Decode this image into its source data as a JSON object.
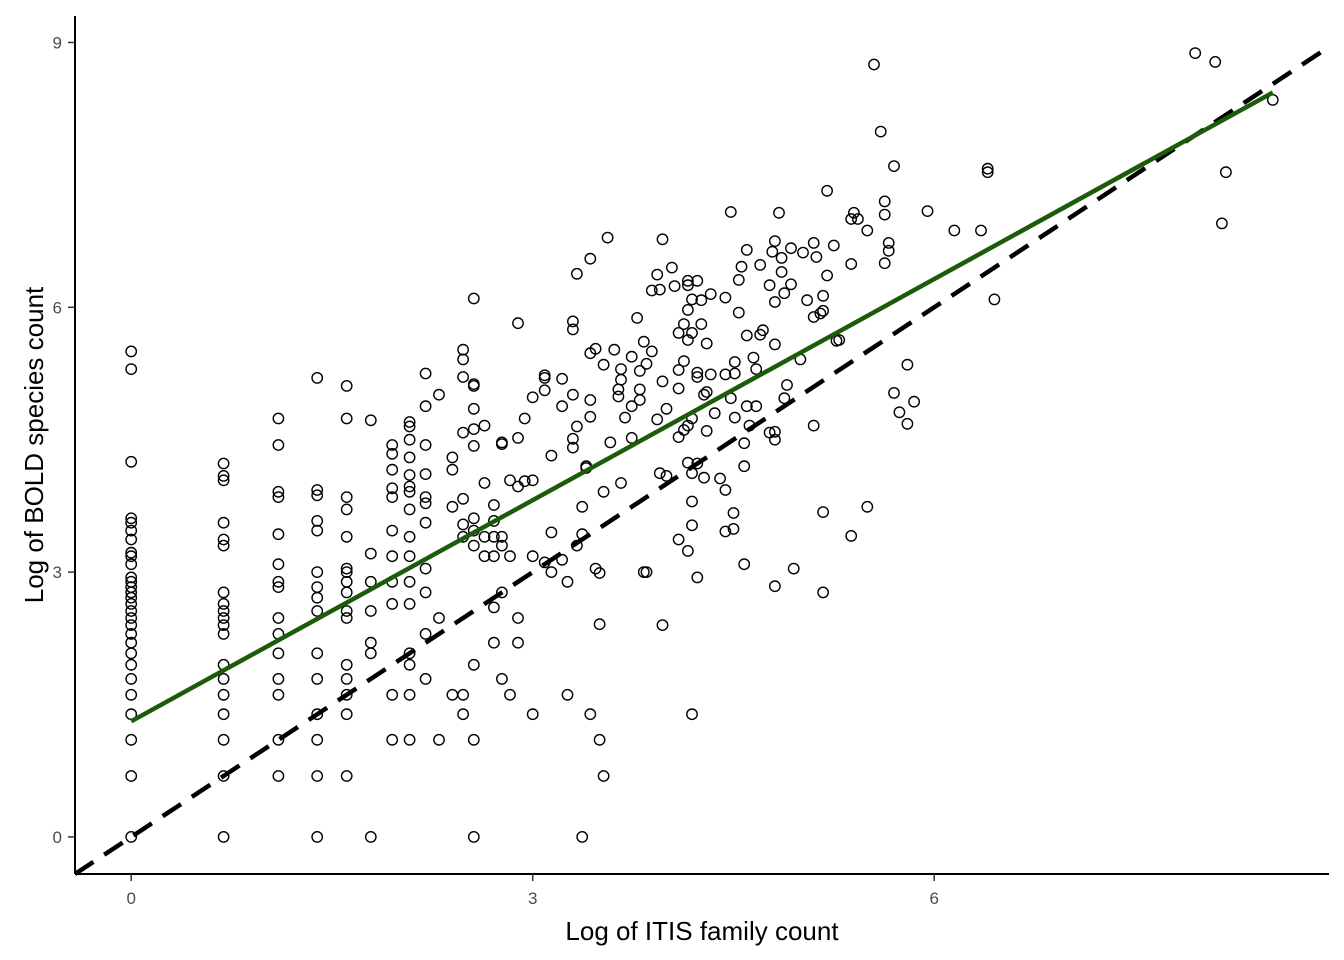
{
  "chart_data": {
    "type": "scatter",
    "xlabel": "Log of ITIS family count",
    "ylabel": "Log of BOLD species count",
    "xlim": [
      -0.42,
      8.95
    ],
    "ylim": [
      -0.42,
      9.3
    ],
    "xticks": [
      0,
      3,
      6
    ],
    "yticks": [
      0,
      3,
      6,
      9
    ],
    "grid": false,
    "colors": {
      "points": "#000000",
      "fit_line": "#1a5c0a",
      "identity_line": "#000000",
      "axis": "#000000"
    },
    "fit_line": {
      "name": "",
      "slope": 0.835,
      "intercept": 1.31,
      "x_range": [
        0,
        8.53
      ]
    },
    "identity_line": {
      "name": "",
      "slope": 1,
      "intercept": 0
    },
    "points": [
      [
        0,
        5.5
      ],
      [
        0,
        5.3
      ],
      [
        0,
        4.25
      ],
      [
        0,
        3.61
      ],
      [
        0,
        3.56
      ],
      [
        0,
        3.47
      ],
      [
        0,
        3.37
      ],
      [
        0,
        3.22
      ],
      [
        0,
        3.18
      ],
      [
        0,
        3.09
      ],
      [
        0,
        2.94
      ],
      [
        0,
        2.89
      ],
      [
        0,
        2.83
      ],
      [
        0,
        2.77
      ],
      [
        0,
        2.71
      ],
      [
        0,
        2.64
      ],
      [
        0,
        2.56
      ],
      [
        0,
        2.48
      ],
      [
        0,
        2.4
      ],
      [
        0,
        2.3
      ],
      [
        0,
        2.2
      ],
      [
        0,
        2.08
      ],
      [
        0,
        1.95
      ],
      [
        0,
        1.79
      ],
      [
        0,
        1.61
      ],
      [
        0,
        1.39
      ],
      [
        0,
        1.1
      ],
      [
        0,
        0.69
      ],
      [
        0,
        0
      ],
      [
        0.69,
        4.23
      ],
      [
        0.69,
        4.09
      ],
      [
        0.69,
        4.04
      ],
      [
        0.69,
        3.56
      ],
      [
        0.69,
        3.37
      ],
      [
        0.69,
        3.3
      ],
      [
        0.69,
        2.77
      ],
      [
        0.69,
        2.64
      ],
      [
        0.69,
        2.56
      ],
      [
        0.69,
        2.48
      ],
      [
        0.69,
        2.4
      ],
      [
        0.69,
        2.3
      ],
      [
        0.69,
        1.95
      ],
      [
        0.69,
        1.79
      ],
      [
        0.69,
        1.61
      ],
      [
        0.69,
        1.39
      ],
      [
        0.69,
        1.1
      ],
      [
        0.69,
        0.69
      ],
      [
        0.69,
        0
      ],
      [
        1.1,
        4.74
      ],
      [
        1.1,
        4.44
      ],
      [
        1.1,
        3.91
      ],
      [
        1.1,
        3.85
      ],
      [
        1.1,
        3.43
      ],
      [
        1.1,
        3.09
      ],
      [
        1.1,
        2.89
      ],
      [
        1.1,
        2.83
      ],
      [
        1.1,
        2.48
      ],
      [
        1.1,
        2.3
      ],
      [
        1.1,
        2.08
      ],
      [
        1.1,
        1.79
      ],
      [
        1.1,
        1.61
      ],
      [
        1.1,
        1.1
      ],
      [
        1.1,
        0.69
      ],
      [
        1.39,
        5.2
      ],
      [
        1.39,
        3.93
      ],
      [
        1.39,
        3.87
      ],
      [
        1.39,
        3.58
      ],
      [
        1.39,
        3.47
      ],
      [
        1.39,
        3.0
      ],
      [
        1.39,
        2.83
      ],
      [
        1.39,
        2.71
      ],
      [
        1.39,
        2.56
      ],
      [
        1.39,
        2.08
      ],
      [
        1.39,
        1.79
      ],
      [
        1.39,
        1.39
      ],
      [
        1.39,
        1.1
      ],
      [
        1.39,
        0.69
      ],
      [
        1.39,
        0
      ],
      [
        1.61,
        5.11
      ],
      [
        1.61,
        4.74
      ],
      [
        1.61,
        3.85
      ],
      [
        1.61,
        3.71
      ],
      [
        1.61,
        3.4
      ],
      [
        1.61,
        3.04
      ],
      [
        1.61,
        3.0
      ],
      [
        1.61,
        2.89
      ],
      [
        1.61,
        2.77
      ],
      [
        1.61,
        2.56
      ],
      [
        1.61,
        2.48
      ],
      [
        1.61,
        1.95
      ],
      [
        1.61,
        1.79
      ],
      [
        1.61,
        1.61
      ],
      [
        1.61,
        1.39
      ],
      [
        1.61,
        0.69
      ],
      [
        1.79,
        4.72
      ],
      [
        1.79,
        3.21
      ],
      [
        1.79,
        2.89
      ],
      [
        1.79,
        2.56
      ],
      [
        1.79,
        2.2
      ],
      [
        1.79,
        2.08
      ],
      [
        1.79,
        0
      ],
      [
        1.95,
        4.44
      ],
      [
        1.95,
        4.34
      ],
      [
        1.95,
        4.16
      ],
      [
        1.95,
        3.95
      ],
      [
        1.95,
        3.85
      ],
      [
        1.95,
        3.47
      ],
      [
        1.95,
        3.18
      ],
      [
        1.95,
        2.89
      ],
      [
        1.95,
        2.64
      ],
      [
        1.95,
        1.61
      ],
      [
        1.95,
        1.1
      ],
      [
        2.08,
        4.7
      ],
      [
        2.08,
        4.65
      ],
      [
        2.08,
        4.5
      ],
      [
        2.08,
        4.3
      ],
      [
        2.08,
        4.1
      ],
      [
        2.08,
        3.97
      ],
      [
        2.08,
        3.91
      ],
      [
        2.08,
        3.71
      ],
      [
        2.08,
        3.4
      ],
      [
        2.08,
        3.18
      ],
      [
        2.08,
        2.89
      ],
      [
        2.08,
        2.64
      ],
      [
        2.08,
        2.08
      ],
      [
        2.08,
        1.95
      ],
      [
        2.08,
        1.61
      ],
      [
        2.08,
        1.1
      ],
      [
        2.2,
        5.25
      ],
      [
        2.2,
        4.88
      ],
      [
        2.2,
        4.44
      ],
      [
        2.2,
        4.11
      ],
      [
        2.2,
        3.85
      ],
      [
        2.2,
        3.78
      ],
      [
        2.2,
        3.56
      ],
      [
        2.2,
        3.04
      ],
      [
        2.2,
        2.77
      ],
      [
        2.2,
        2.3
      ],
      [
        2.2,
        1.79
      ],
      [
        2.3,
        5.01
      ],
      [
        2.3,
        2.48
      ],
      [
        2.3,
        1.1
      ],
      [
        2.4,
        4.3
      ],
      [
        2.4,
        4.16
      ],
      [
        2.4,
        3.74
      ],
      [
        2.4,
        1.61
      ],
      [
        2.48,
        5.52
      ],
      [
        2.48,
        5.41
      ],
      [
        2.48,
        5.21
      ],
      [
        2.48,
        4.58
      ],
      [
        2.48,
        3.83
      ],
      [
        2.48,
        3.54
      ],
      [
        2.48,
        3.4
      ],
      [
        2.48,
        1.61
      ],
      [
        2.48,
        1.39
      ],
      [
        2.56,
        6.1
      ],
      [
        2.56,
        5.13
      ],
      [
        2.56,
        5.11
      ],
      [
        2.56,
        4.85
      ],
      [
        2.56,
        4.62
      ],
      [
        2.56,
        4.43
      ],
      [
        2.56,
        3.61
      ],
      [
        2.56,
        3.47
      ],
      [
        2.56,
        3.3
      ],
      [
        2.56,
        1.95
      ],
      [
        2.56,
        1.1
      ],
      [
        2.56,
        0
      ],
      [
        2.64,
        4.66
      ],
      [
        2.64,
        4.01
      ],
      [
        2.64,
        3.4
      ],
      [
        2.64,
        3.18
      ],
      [
        2.71,
        3.76
      ],
      [
        2.71,
        3.58
      ],
      [
        2.71,
        3.4
      ],
      [
        2.71,
        3.18
      ],
      [
        2.71,
        2.6
      ],
      [
        2.71,
        2.2
      ],
      [
        2.77,
        4.47
      ],
      [
        2.77,
        4.45
      ],
      [
        2.77,
        3.4
      ],
      [
        2.77,
        3.3
      ],
      [
        2.77,
        2.77
      ],
      [
        2.77,
        1.79
      ],
      [
        2.83,
        4.04
      ],
      [
        2.83,
        3.18
      ],
      [
        2.83,
        1.61
      ],
      [
        2.89,
        5.82
      ],
      [
        2.89,
        4.52
      ],
      [
        2.89,
        3.97
      ],
      [
        2.89,
        2.48
      ],
      [
        2.89,
        2.2
      ],
      [
        2.94,
        4.74
      ],
      [
        2.94,
        4.03
      ],
      [
        3.0,
        4.98
      ],
      [
        3.0,
        4.04
      ],
      [
        3.0,
        3.18
      ],
      [
        3.0,
        1.39
      ],
      [
        3.09,
        5.23
      ],
      [
        3.09,
        5.2
      ],
      [
        3.09,
        5.06
      ],
      [
        3.09,
        3.11
      ],
      [
        3.14,
        4.32
      ],
      [
        3.14,
        3.45
      ],
      [
        3.14,
        3.0
      ],
      [
        3.22,
        5.19
      ],
      [
        3.22,
        4.88
      ],
      [
        3.22,
        3.14
      ],
      [
        3.26,
        2.89
      ],
      [
        3.26,
        1.61
      ],
      [
        3.3,
        5.84
      ],
      [
        3.3,
        5.75
      ],
      [
        3.3,
        5.01
      ],
      [
        3.3,
        4.41
      ],
      [
        3.3,
        4.51
      ],
      [
        3.33,
        6.38
      ],
      [
        3.33,
        4.65
      ],
      [
        3.33,
        3.3
      ],
      [
        3.37,
        3.74
      ],
      [
        3.37,
        3.43
      ],
      [
        3.37,
        0
      ],
      [
        3.4,
        4.2
      ],
      [
        3.4,
        4.18
      ],
      [
        3.43,
        6.55
      ],
      [
        3.43,
        5.48
      ],
      [
        3.43,
        4.95
      ],
      [
        3.43,
        4.76
      ],
      [
        3.43,
        1.39
      ],
      [
        3.47,
        5.53
      ],
      [
        3.47,
        3.04
      ],
      [
        3.5,
        2.99
      ],
      [
        3.5,
        2.41
      ],
      [
        3.5,
        1.1
      ],
      [
        3.53,
        5.35
      ],
      [
        3.53,
        3.91
      ],
      [
        3.53,
        0.69
      ],
      [
        3.56,
        6.79
      ],
      [
        3.58,
        4.47
      ],
      [
        3.61,
        5.52
      ],
      [
        3.64,
        5.07
      ],
      [
        3.64,
        4.99
      ],
      [
        3.66,
        5.3
      ],
      [
        3.66,
        5.18
      ],
      [
        3.66,
        4.01
      ],
      [
        3.69,
        4.75
      ],
      [
        3.74,
        5.44
      ],
      [
        3.74,
        4.88
      ],
      [
        3.74,
        4.52
      ],
      [
        3.78,
        5.88
      ],
      [
        3.8,
        5.28
      ],
      [
        3.8,
        5.07
      ],
      [
        3.8,
        4.95
      ],
      [
        3.83,
        5.61
      ],
      [
        3.83,
        3.0
      ],
      [
        3.85,
        5.36
      ],
      [
        3.85,
        3.0
      ],
      [
        3.89,
        6.19
      ],
      [
        3.89,
        5.5
      ],
      [
        3.93,
        6.37
      ],
      [
        3.93,
        4.73
      ],
      [
        3.95,
        6.2
      ],
      [
        3.95,
        4.12
      ],
      [
        3.97,
        6.77
      ],
      [
        3.97,
        5.16
      ],
      [
        3.97,
        2.4
      ],
      [
        4.0,
        4.85
      ],
      [
        4.0,
        4.09
      ],
      [
        4.04,
        6.45
      ],
      [
        4.06,
        6.24
      ],
      [
        4.09,
        5.71
      ],
      [
        4.09,
        5.29
      ],
      [
        4.09,
        5.08
      ],
      [
        4.09,
        4.53
      ],
      [
        4.09,
        3.37
      ],
      [
        4.13,
        5.81
      ],
      [
        4.13,
        5.39
      ],
      [
        4.13,
        4.61
      ],
      [
        4.16,
        6.3
      ],
      [
        4.16,
        6.25
      ],
      [
        4.16,
        5.97
      ],
      [
        4.16,
        5.63
      ],
      [
        4.16,
        4.66
      ],
      [
        4.16,
        4.24
      ],
      [
        4.16,
        3.24
      ],
      [
        4.19,
        6.09
      ],
      [
        4.19,
        5.71
      ],
      [
        4.19,
        4.74
      ],
      [
        4.19,
        4.12
      ],
      [
        4.19,
        3.8
      ],
      [
        4.19,
        3.53
      ],
      [
        4.19,
        1.39
      ],
      [
        4.23,
        6.3
      ],
      [
        4.23,
        5.26
      ],
      [
        4.23,
        5.21
      ],
      [
        4.23,
        4.23
      ],
      [
        4.23,
        2.94
      ],
      [
        4.26,
        6.08
      ],
      [
        4.26,
        5.81
      ],
      [
        4.28,
        5.01
      ],
      [
        4.28,
        4.07
      ],
      [
        4.3,
        5.59
      ],
      [
        4.3,
        5.04
      ],
      [
        4.3,
        4.6
      ],
      [
        4.33,
        6.15
      ],
      [
        4.33,
        5.24
      ],
      [
        4.36,
        4.8
      ],
      [
        4.4,
        4.06
      ],
      [
        4.44,
        6.11
      ],
      [
        4.44,
        5.24
      ],
      [
        4.44,
        3.93
      ],
      [
        4.44,
        3.46
      ],
      [
        4.48,
        7.08
      ],
      [
        4.48,
        4.97
      ],
      [
        4.5,
        3.67
      ],
      [
        4.5,
        3.49
      ],
      [
        4.51,
        5.38
      ],
      [
        4.51,
        5.25
      ],
      [
        4.51,
        4.75
      ],
      [
        4.54,
        6.31
      ],
      [
        4.54,
        5.94
      ],
      [
        4.56,
        6.46
      ],
      [
        4.58,
        4.46
      ],
      [
        4.58,
        4.2
      ],
      [
        4.58,
        3.09
      ],
      [
        4.6,
        6.65
      ],
      [
        4.6,
        5.68
      ],
      [
        4.6,
        4.88
      ],
      [
        4.62,
        4.66
      ],
      [
        4.65,
        5.43
      ],
      [
        4.67,
        5.3
      ],
      [
        4.67,
        4.88
      ],
      [
        4.7,
        6.48
      ],
      [
        4.7,
        5.69
      ],
      [
        4.72,
        5.74
      ],
      [
        4.77,
        6.25
      ],
      [
        4.77,
        4.58
      ],
      [
        4.79,
        6.63
      ],
      [
        4.81,
        6.75
      ],
      [
        4.81,
        6.06
      ],
      [
        4.81,
        5.58
      ],
      [
        4.81,
        4.59
      ],
      [
        4.81,
        4.5
      ],
      [
        4.81,
        2.84
      ],
      [
        4.84,
        7.07
      ],
      [
        4.86,
        6.56
      ],
      [
        4.86,
        6.4
      ],
      [
        4.88,
        6.16
      ],
      [
        4.88,
        4.97
      ],
      [
        4.9,
        5.12
      ],
      [
        4.93,
        6.67
      ],
      [
        4.93,
        6.26
      ],
      [
        4.95,
        3.04
      ],
      [
        5.0,
        5.41
      ],
      [
        5.02,
        6.62
      ],
      [
        5.05,
        6.08
      ],
      [
        5.1,
        6.73
      ],
      [
        5.1,
        5.89
      ],
      [
        5.1,
        4.66
      ],
      [
        5.12,
        6.57
      ],
      [
        5.15,
        5.93
      ],
      [
        5.17,
        6.13
      ],
      [
        5.17,
        5.96
      ],
      [
        5.17,
        3.68
      ],
      [
        5.17,
        2.77
      ],
      [
        5.2,
        7.32
      ],
      [
        5.2,
        6.36
      ],
      [
        5.25,
        6.7
      ],
      [
        5.27,
        5.62
      ],
      [
        5.29,
        5.63
      ],
      [
        5.38,
        7.0
      ],
      [
        5.38,
        6.49
      ],
      [
        5.38,
        3.41
      ],
      [
        5.4,
        7.07
      ],
      [
        5.43,
        7.0
      ],
      [
        5.5,
        6.87
      ],
      [
        5.5,
        3.74
      ],
      [
        5.55,
        8.75
      ],
      [
        5.6,
        7.99
      ],
      [
        5.63,
        7.2
      ],
      [
        5.63,
        7.05
      ],
      [
        5.63,
        6.5
      ],
      [
        5.66,
        6.64
      ],
      [
        5.66,
        6.73
      ],
      [
        5.7,
        7.6
      ],
      [
        5.7,
        5.03
      ],
      [
        5.74,
        4.81
      ],
      [
        5.8,
        5.35
      ],
      [
        5.8,
        4.68
      ],
      [
        5.85,
        4.93
      ],
      [
        5.95,
        7.09
      ],
      [
        6.15,
        6.87
      ],
      [
        6.35,
        6.87
      ],
      [
        6.4,
        7.57
      ],
      [
        6.4,
        7.53
      ],
      [
        6.45,
        6.09
      ],
      [
        7.95,
        8.88
      ],
      [
        8.1,
        8.78
      ],
      [
        8.15,
        6.95
      ],
      [
        8.18,
        7.53
      ],
      [
        8.53,
        8.35
      ]
    ]
  }
}
